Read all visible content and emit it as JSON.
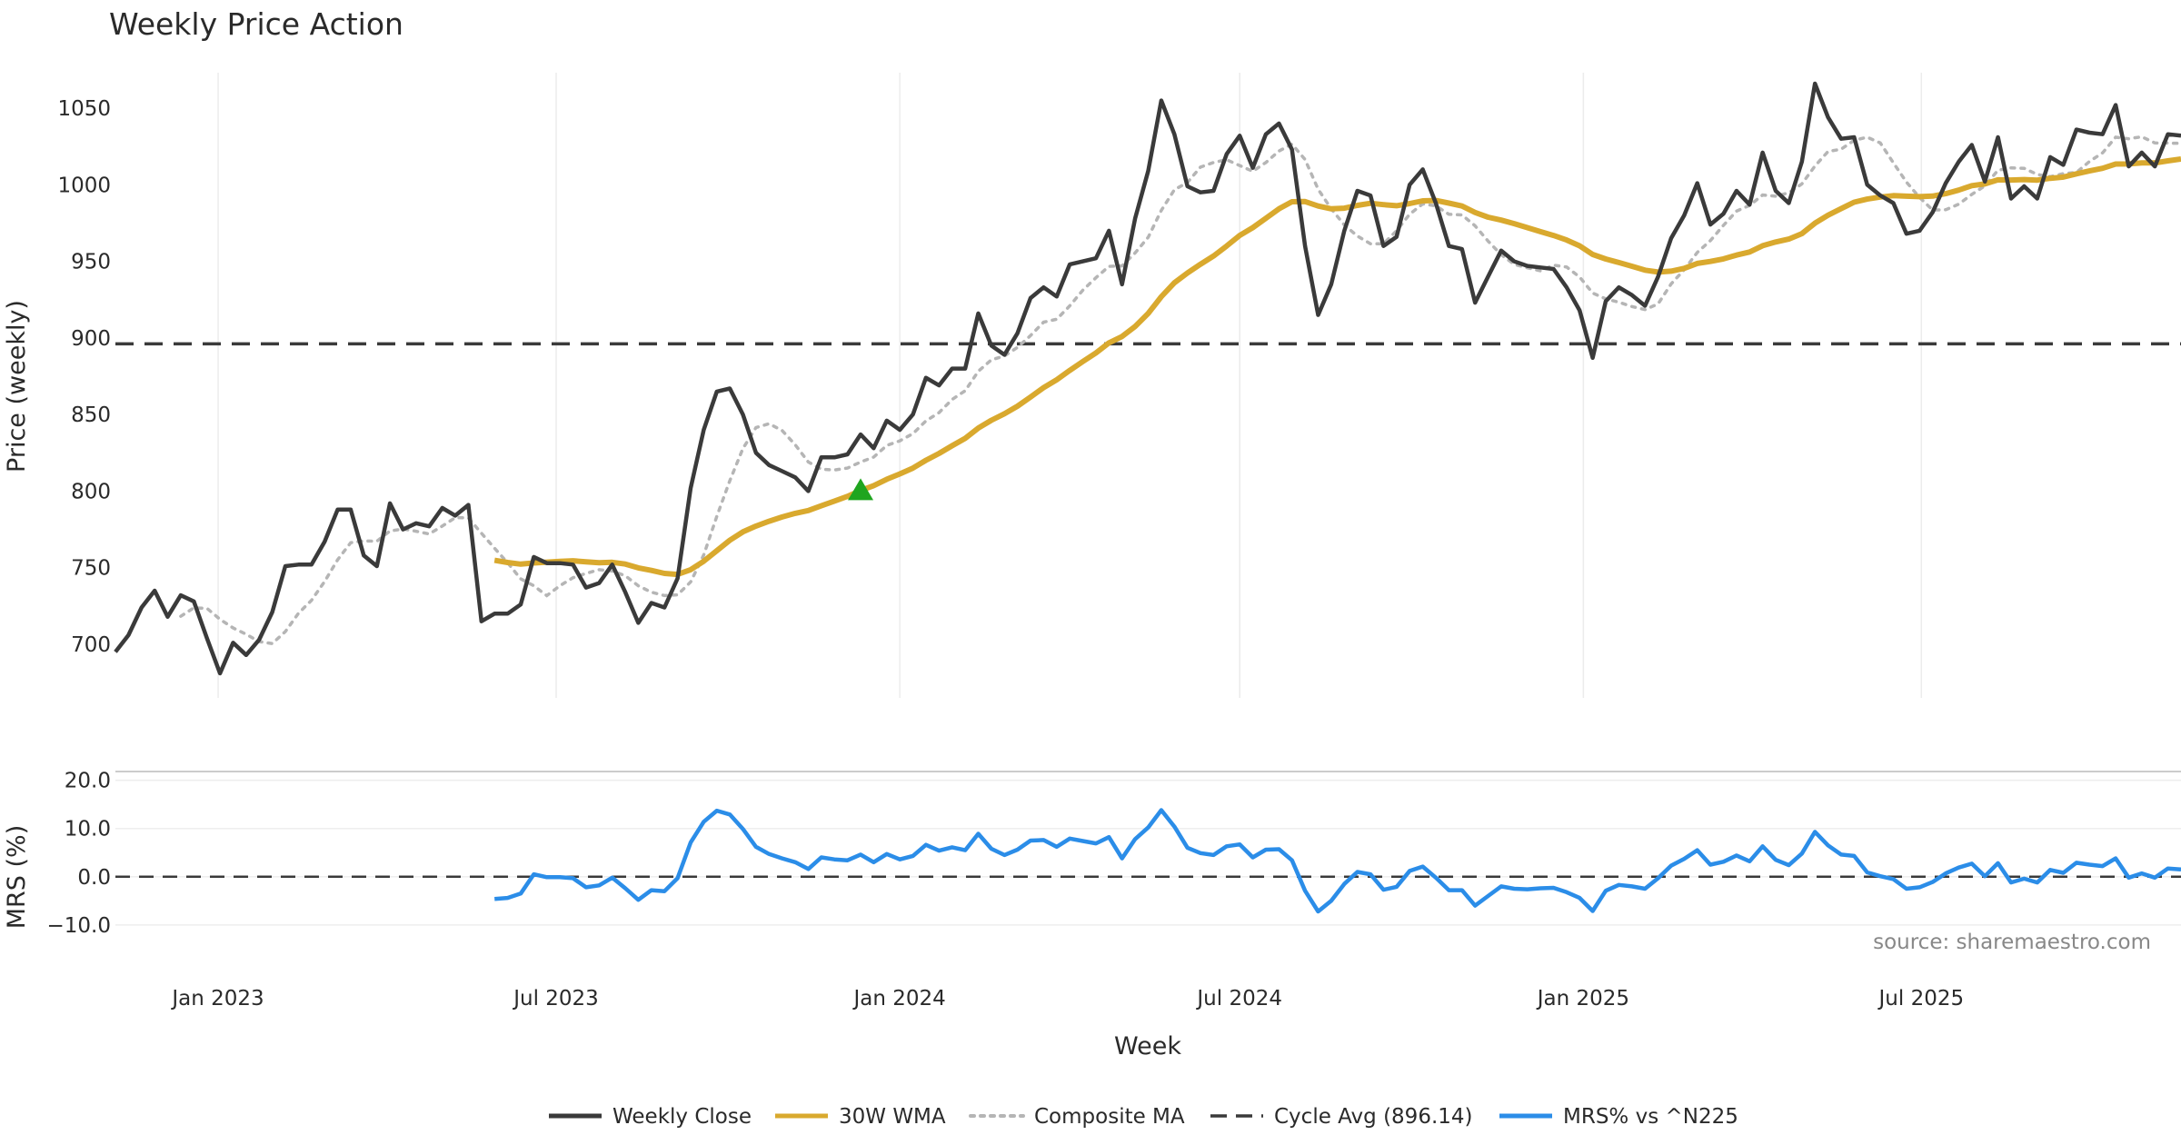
{
  "chart_data": {
    "type": "line",
    "title": "Weekly Price Action",
    "xlabel": "Week",
    "source_note": "source: sharemaestro.com",
    "x_ticks": [
      "Jan 2023",
      "Jul 2023",
      "Jan 2024",
      "Jul 2024",
      "Jan 2025",
      "Jul 2025"
    ],
    "x_start": "2022-11-07",
    "x_step_days": 7,
    "grid": true,
    "legend_position": "bottom",
    "price_panel": {
      "ylabel": "Price (weekly)",
      "ylim": [
        665,
        1085
      ],
      "y_ticks": [
        "700",
        "750",
        "800",
        "850",
        "900",
        "950",
        "1000",
        "1050"
      ],
      "cycle_avg": 896.14,
      "signal_marker": {
        "week_index": 57,
        "value": 800,
        "color": "#1fa51f"
      },
      "series": [
        {
          "name": "Weekly Close",
          "color": "#3a3a3a",
          "values": [
            695,
            706,
            724,
            735,
            718,
            732,
            728,
            704,
            681,
            701,
            693,
            703,
            721,
            751,
            752,
            752,
            767,
            788,
            788,
            758,
            751,
            792,
            775,
            779,
            777,
            789,
            784,
            791,
            715,
            720,
            720,
            726,
            757,
            753,
            753,
            752,
            737,
            740,
            752,
            734,
            714,
            727,
            724,
            743,
            802,
            840,
            865,
            867,
            850,
            825,
            817,
            813,
            809,
            800,
            822,
            822,
            824,
            837,
            828,
            846,
            840,
            850,
            874,
            869,
            880,
            880,
            916,
            895,
            889,
            903,
            926,
            933,
            927,
            948,
            950,
            952,
            970,
            935,
            978,
            1009,
            1055,
            1033,
            999,
            995,
            996,
            1020,
            1032,
            1011,
            1033,
            1040,
            1023,
            960,
            915,
            935,
            970,
            996,
            993,
            960,
            966,
            1000,
            1010,
            988,
            960,
            958,
            923,
            940,
            957,
            950,
            947,
            946,
            945,
            933,
            918,
            887,
            924,
            933,
            928,
            921,
            940,
            965,
            980,
            1001,
            974,
            981,
            996,
            987,
            1021,
            996,
            988,
            1015,
            1066,
            1044,
            1030,
            1031,
            1000,
            993,
            988,
            968,
            970,
            982,
            1001,
            1015,
            1026,
            1002,
            1031,
            991,
            999,
            991,
            1018,
            1013,
            1036,
            1034,
            1033,
            1052,
            1012,
            1021,
            1012,
            1033,
            1032
          ]
        },
        {
          "name": "30W WMA",
          "color": "#d9a92e",
          "values": [
            null,
            null,
            null,
            null,
            null,
            null,
            null,
            null,
            null,
            null,
            null,
            null,
            null,
            null,
            null,
            null,
            null,
            null,
            null,
            null,
            null,
            null,
            null,
            null,
            null,
            null,
            null,
            null,
            null,
            null,
            null,
            null,
            null,
            null,
            null,
            null,
            null,
            null,
            null,
            null,
            null,
            null,
            null,
            null,
            null,
            null,
            null,
            null,
            null,
            null,
            null,
            null,
            null,
            null,
            null,
            null,
            null,
            null,
            null,
            null,
            null,
            null,
            null,
            null,
            null,
            null,
            null,
            null,
            null,
            null,
            null,
            null,
            null,
            null,
            null,
            null,
            null,
            null,
            null,
            null,
            null,
            null,
            null,
            null,
            null,
            null,
            null,
            null,
            null,
            null,
            null,
            null,
            null,
            null,
            null,
            null,
            null,
            null,
            null,
            null,
            null,
            null,
            null,
            null,
            null,
            null,
            null,
            null,
            null,
            null,
            null,
            null,
            null,
            null,
            null,
            null,
            null,
            null,
            null,
            null,
            null,
            null,
            null,
            null,
            null,
            null,
            null,
            null,
            null,
            null,
            null,
            null,
            null,
            null,
            null,
            null,
            null,
            null,
            null,
            null,
            null,
            null,
            null,
            null,
            null,
            null,
            null,
            null,
            null,
            null,
            null,
            null,
            null,
            null,
            null,
            null,
            null,
            null,
            null,
            null,
            null,
            null,
            null,
            null,
            null,
            null,
            null,
            null,
            null
          ]
        },
        {
          "name": "Composite MA",
          "color": "#b5b5b5",
          "values": [
            null,
            null,
            null,
            null,
            null,
            null,
            null,
            null,
            null,
            null,
            null,
            null,
            null,
            null,
            null,
            null,
            null,
            null,
            null,
            null,
            null,
            null,
            null,
            null,
            null,
            null,
            null,
            null,
            null,
            null,
            null,
            null,
            null,
            null,
            null,
            null,
            null,
            null,
            null,
            null,
            null,
            null,
            null,
            null,
            null,
            null,
            null,
            null,
            null,
            null,
            null,
            null,
            null,
            null,
            null,
            null,
            null,
            null,
            null,
            null,
            null,
            null,
            null,
            null,
            null,
            null,
            null,
            null,
            null,
            null,
            null,
            null,
            null,
            null,
            null,
            null,
            null,
            null,
            null,
            null,
            null,
            null,
            null,
            null,
            null,
            null,
            null,
            null,
            null,
            null,
            null,
            null,
            null,
            null,
            null,
            null,
            null,
            null,
            null,
            null,
            null,
            null,
            null,
            null,
            null,
            null,
            null,
            null,
            null,
            null,
            null,
            null,
            null,
            null,
            null,
            null,
            null,
            null,
            null,
            null,
            null,
            null,
            null,
            null,
            null,
            null,
            null,
            null,
            null,
            null,
            null,
            null,
            null,
            null,
            null,
            null,
            null,
            null,
            null,
            null,
            null,
            null,
            null,
            null,
            null,
            null,
            null,
            null,
            null,
            null,
            null,
            null,
            null,
            null,
            null,
            null,
            null,
            null,
            null,
            null,
            null,
            null,
            null,
            null,
            null,
            null,
            null,
            null,
            null
          ]
        },
        {
          "name": "Cycle Avg (896.14)",
          "color": "#3a3a3a",
          "values": []
        }
      ]
    },
    "mrs_panel": {
      "ylabel": "MRS (%)",
      "ylim": [
        -17,
        22
      ],
      "y_ticks": [
        "−10.0",
        "0.0",
        "10.0",
        "20.0"
      ],
      "series": [
        {
          "name": "MRS% vs ^N225",
          "color": "#2b8de8",
          "values": [
            null,
            null,
            null,
            null,
            null,
            null,
            null,
            null,
            null,
            null,
            null,
            null,
            null,
            null,
            null,
            null,
            null,
            null,
            null,
            null,
            null,
            null,
            null,
            null,
            null,
            null,
            null,
            null,
            null,
            null,
            null,
            null,
            null,
            null,
            null,
            null,
            null,
            null,
            null,
            null,
            null,
            null,
            null,
            null,
            null,
            null,
            null,
            null,
            null,
            null,
            null,
            null,
            null,
            null,
            null,
            null,
            null,
            null,
            null,
            null,
            null,
            null,
            null,
            null,
            null,
            null,
            null,
            null,
            null,
            null,
            null,
            null,
            null,
            null,
            null,
            null,
            null,
            null,
            null,
            null,
            null,
            null,
            null,
            null,
            null,
            null,
            null,
            null,
            null,
            null,
            null,
            null,
            null,
            null,
            null,
            null,
            null,
            null,
            null,
            null,
            null,
            null,
            null,
            null,
            null,
            null,
            null,
            null,
            null,
            null,
            null,
            null,
            null,
            null,
            null,
            null,
            null,
            null,
            null,
            null,
            null,
            null,
            null,
            null,
            null,
            null,
            null,
            null,
            null,
            null,
            null,
            null,
            null,
            null,
            null,
            null,
            null,
            null,
            null,
            null,
            null,
            null,
            null,
            null,
            null,
            null,
            null,
            null,
            null,
            null,
            null,
            null,
            null,
            null,
            null,
            null,
            null,
            null,
            null,
            null,
            null,
            null,
            null,
            null,
            null,
            null,
            null,
            null,
            null
          ]
        }
      ]
    },
    "legend": [
      {
        "label": "Weekly Close",
        "color": "#3a3a3a",
        "style": "solid"
      },
      {
        "label": "30W WMA",
        "color": "#d9a92e",
        "style": "solid"
      },
      {
        "label": "Composite MA",
        "color": "#b5b5b5",
        "style": "dotted"
      },
      {
        "label": "Cycle Avg (896.14)",
        "color": "#3a3a3a",
        "style": "dashed"
      },
      {
        "label": "MRS% vs ^N225",
        "color": "#2b8de8",
        "style": "solid"
      }
    ]
  }
}
